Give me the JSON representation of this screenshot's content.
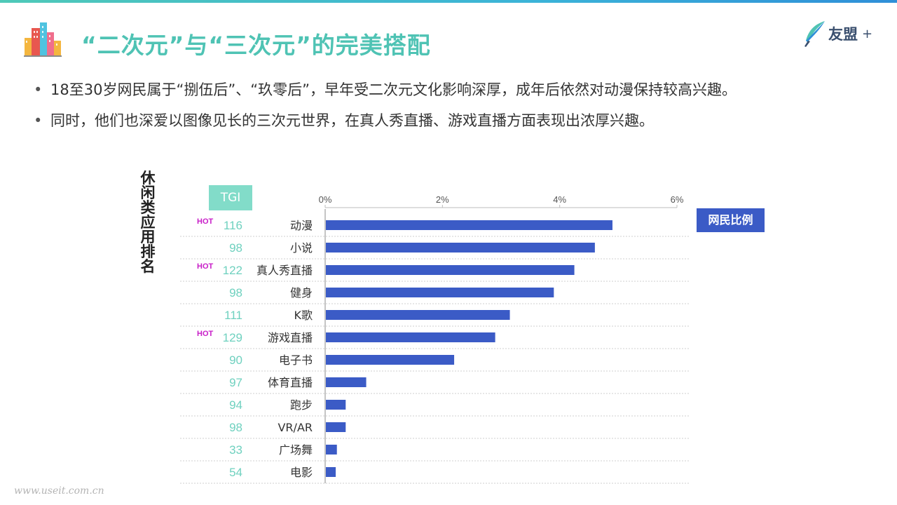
{
  "header": {
    "title": "“二次元”与“三次元”的完美搭配",
    "brand_name": "友盟",
    "brand_plus": "+"
  },
  "bullets": [
    "18至30岁网民属于“捌伍后”、“玖零后”，早年受二次元文化影响深厚，成年后依然对动漫保持较高兴趣。",
    "同时，他们也深爱以图像见长的三次元世界，在真人秀直播、游戏直播方面表现出浓厚兴趣。"
  ],
  "chart_data": {
    "type": "bar",
    "orientation": "horizontal",
    "vertical_title": "休闲类应用排名",
    "tgi_header": "TGI",
    "legend": "网民比例",
    "hot_label": "HOT",
    "categories": [
      "动漫",
      "小说",
      "真人秀直播",
      "健身",
      "K歌",
      "游戏直播",
      "电子书",
      "体育直播",
      "跑步",
      "VR/AR",
      "广场舞",
      "电影"
    ],
    "values": [
      4.9,
      4.6,
      4.25,
      3.9,
      3.15,
      2.9,
      2.2,
      0.7,
      0.35,
      0.35,
      0.2,
      0.18
    ],
    "tgi": [
      "116",
      "98",
      "122",
      "98",
      "111",
      "129",
      "90",
      "97",
      "94",
      "98",
      "33",
      "54"
    ],
    "hot": [
      true,
      false,
      true,
      false,
      false,
      true,
      false,
      false,
      false,
      false,
      false,
      false
    ],
    "xlim": [
      0,
      6
    ],
    "x_ticks": [
      "0%",
      "2%",
      "4%",
      "6%"
    ],
    "grid": "horizontal dashed row separators",
    "colors": {
      "bar": "#3b5bc6",
      "tgi": "#6fd1bf",
      "hot": "#c81fc8",
      "legend_bg": "#3b5bc6",
      "tgi_badge_bg": "#82dcc9"
    }
  },
  "footer": {
    "watermark": "www.useit.com.cn"
  }
}
